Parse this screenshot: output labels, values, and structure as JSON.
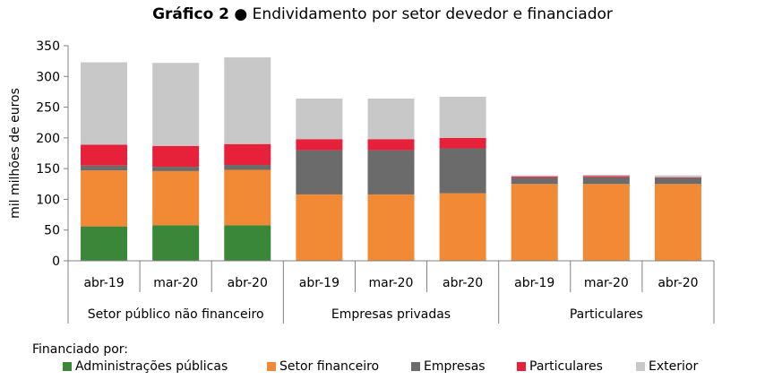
{
  "title_number": "Gráfico 2",
  "title_bullet": "●",
  "title_text": "Endividamento por setor devedor e financiador",
  "legend_title": "Financiado por:",
  "chart_data": {
    "type": "bar",
    "stacked": true,
    "ylabel": "mil milhões de euros",
    "ylim": [
      0,
      350
    ],
    "yticks": [
      0,
      50,
      100,
      150,
      200,
      250,
      300,
      350
    ],
    "grid": false,
    "legend_position": "bottom",
    "groups": [
      {
        "name": "Setor público não financeiro",
        "categories": [
          "abr-19",
          "mar-20",
          "abr-20"
        ]
      },
      {
        "name": "Empresas privadas",
        "categories": [
          "abr-19",
          "mar-20",
          "abr-20"
        ]
      },
      {
        "name": "Particulares",
        "categories": [
          "abr-19",
          "mar-20",
          "abr-20"
        ]
      }
    ],
    "categories": [
      "abr-19",
      "mar-20",
      "abr-20",
      "abr-19",
      "mar-20",
      "abr-20",
      "abr-19",
      "mar-20",
      "abr-20"
    ],
    "series": [
      {
        "name": "Administrações públicas",
        "color": "#3a873a",
        "values": [
          56,
          58,
          58,
          0,
          0,
          0,
          0,
          0,
          0
        ]
      },
      {
        "name": "Setor financeiro",
        "color": "#f28a35",
        "values": [
          91,
          88,
          90,
          108,
          108,
          110,
          125,
          125,
          125
        ]
      },
      {
        "name": "Empresas",
        "color": "#6b6b6b",
        "values": [
          8,
          7,
          8,
          72,
          72,
          73,
          10,
          11,
          10
        ]
      },
      {
        "name": "Particulares",
        "color": "#e8213a",
        "values": [
          34,
          34,
          34,
          18,
          18,
          17,
          2,
          2,
          1
        ]
      },
      {
        "name": "Exterior",
        "color": "#c8c8c8",
        "values": [
          134,
          135,
          141,
          66,
          66,
          67,
          2,
          2,
          3
        ]
      }
    ]
  }
}
